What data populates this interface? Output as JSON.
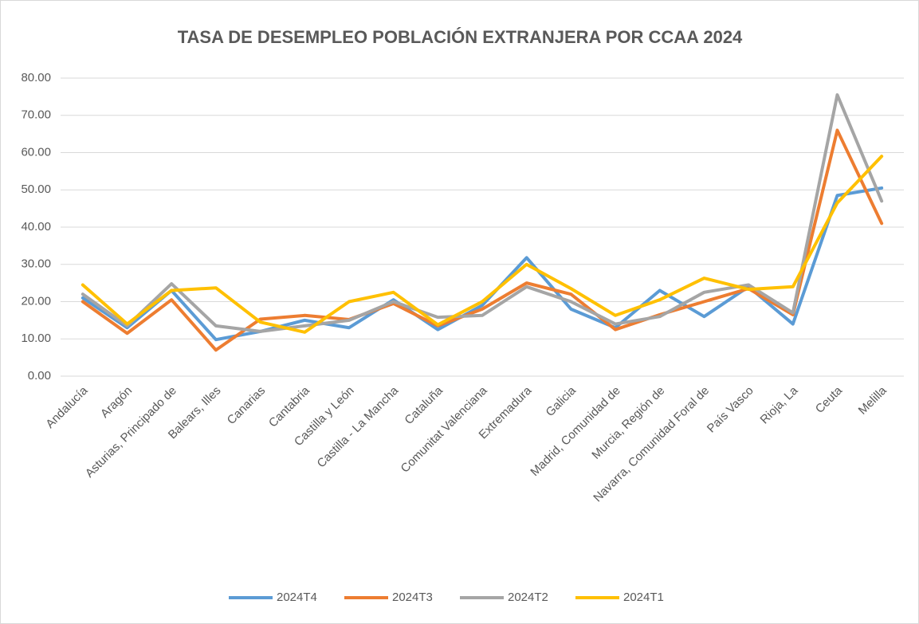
{
  "chart_data": {
    "type": "line",
    "title": "TASA DE DESEMPLEO POBLACIÓN EXTRANJERA POR CCAA 2024",
    "categories": [
      "Andalucía",
      "Aragón",
      "Asturias, Principado de",
      "Balears, Illes",
      "Canarias",
      "Cantabria",
      "Castilla y León",
      "Castilla - La Mancha",
      "Cataluña",
      "Comunitat Valenciana",
      "Extremadura",
      "Galicia",
      "Madrid, Comunidad de",
      "Murcia, Región de",
      "Navarra, Comunidad Foral de",
      "País Vasco",
      "Rioja, La",
      "Ceuta",
      "Melilla"
    ],
    "series": [
      {
        "name": "2024T4",
        "color": "#5b9bd5",
        "values": [
          21,
          13,
          23,
          9.8,
          12,
          15,
          13,
          20.5,
          12.5,
          19,
          31.8,
          18,
          13,
          23,
          16,
          24,
          14,
          48.5,
          50.5
        ]
      },
      {
        "name": "2024T3",
        "color": "#ed7d31",
        "values": [
          20,
          11.5,
          20.5,
          7,
          15.3,
          16.3,
          15.2,
          19.5,
          13.5,
          18,
          25,
          22,
          12.5,
          16.5,
          20,
          23.5,
          16.5,
          66,
          41
        ]
      },
      {
        "name": "2024T2",
        "color": "#a5a5a5",
        "values": [
          22,
          13.5,
          24.8,
          13.5,
          12,
          13.5,
          15,
          20,
          15.8,
          16.3,
          24,
          20,
          14,
          16,
          22.5,
          24.5,
          17,
          75.5,
          47
        ]
      },
      {
        "name": "2024T1",
        "color": "#ffc000",
        "values": [
          24.5,
          14,
          23,
          23.7,
          14.5,
          11.8,
          20,
          22.5,
          13.8,
          20,
          30,
          23.5,
          16.3,
          20.5,
          26.3,
          23.3,
          24,
          46.5,
          59
        ]
      }
    ],
    "ylim": [
      0,
      80
    ],
    "yticks": [
      {
        "value": 0,
        "label": "0.00"
      },
      {
        "value": 10,
        "label": "10.00"
      },
      {
        "value": 20,
        "label": "20.00"
      },
      {
        "value": 30,
        "label": "30.00"
      },
      {
        "value": 40,
        "label": "40.00"
      },
      {
        "value": 50,
        "label": "50.00"
      },
      {
        "value": 60,
        "label": "60.00"
      },
      {
        "value": 70,
        "label": "70.00"
      },
      {
        "value": 80,
        "label": "80.00"
      }
    ],
    "grid": true,
    "legend": "bottom"
  }
}
